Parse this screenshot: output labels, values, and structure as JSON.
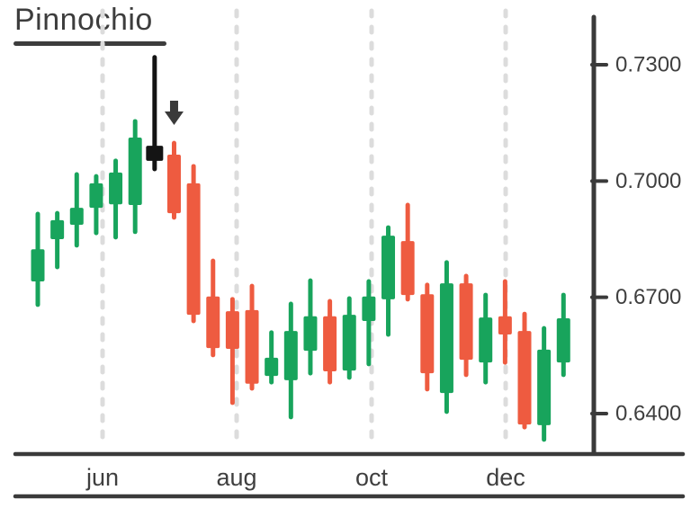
{
  "title": {
    "text": "Pinnochio"
  },
  "colors": {
    "bullish": "#18a45c",
    "bearish": "#ee5b40",
    "pinocchio_bar": "#141414",
    "annotation_arrow": "#3a3a3a",
    "axis": "#3a3a3a",
    "text": "#3f3f3f",
    "gridline": "#dcdcdc"
  },
  "chart_data": {
    "type": "candlestick",
    "title": "Pinnochio",
    "legend_position": "none",
    "grid": "vertical-dashed",
    "y_axis": {
      "side": "right",
      "ticks": [
        {
          "label": "0.7300",
          "value": 0.73
        },
        {
          "label": "0.7000",
          "value": 0.7
        },
        {
          "label": "0.6700",
          "value": 0.67
        },
        {
          "label": "0.6400",
          "value": 0.64
        }
      ],
      "range": [
        0.628,
        0.742
      ]
    },
    "x_axis": {
      "ticks": [
        "jun",
        "aug",
        "oct",
        "dec"
      ]
    },
    "candles": [
      {
        "color": "green",
        "open": 0.6741,
        "high": 0.6915,
        "low": 0.6681,
        "close": 0.6824
      },
      {
        "color": "green",
        "open": 0.685,
        "high": 0.6917,
        "low": 0.6778,
        "close": 0.6899
      },
      {
        "color": "green",
        "open": 0.6887,
        "high": 0.7017,
        "low": 0.6834,
        "close": 0.6931
      },
      {
        "color": "green",
        "open": 0.6931,
        "high": 0.7012,
        "low": 0.6866,
        "close": 0.6994
      },
      {
        "color": "green",
        "open": 0.694,
        "high": 0.7052,
        "low": 0.6855,
        "close": 0.7022
      },
      {
        "color": "green",
        "open": 0.6938,
        "high": 0.7154,
        "low": 0.6869,
        "close": 0.7112
      },
      {
        "color": "black",
        "open": 0.7091,
        "high": 0.7319,
        "low": 0.7031,
        "close": 0.7052
      },
      {
        "color": "red",
        "open": 0.7068,
        "high": 0.7098,
        "low": 0.6906,
        "close": 0.6917
      },
      {
        "color": "red",
        "open": 0.6994,
        "high": 0.7038,
        "low": 0.6639,
        "close": 0.6655
      },
      {
        "color": "red",
        "open": 0.6702,
        "high": 0.6794,
        "low": 0.6551,
        "close": 0.6569
      },
      {
        "color": "red",
        "open": 0.6664,
        "high": 0.6695,
        "low": 0.6428,
        "close": 0.6567
      },
      {
        "color": "red",
        "open": 0.6667,
        "high": 0.6729,
        "low": 0.6465,
        "close": 0.6477
      },
      {
        "color": "green",
        "open": 0.6497,
        "high": 0.6609,
        "low": 0.6481,
        "close": 0.6544
      },
      {
        "color": "green",
        "open": 0.6486,
        "high": 0.6683,
        "low": 0.6391,
        "close": 0.6613
      },
      {
        "color": "green",
        "open": 0.6562,
        "high": 0.6743,
        "low": 0.6504,
        "close": 0.6651
      },
      {
        "color": "red",
        "open": 0.6651,
        "high": 0.669,
        "low": 0.6481,
        "close": 0.6509
      },
      {
        "color": "green",
        "open": 0.6511,
        "high": 0.6697,
        "low": 0.6493,
        "close": 0.6655
      },
      {
        "color": "green",
        "open": 0.6639,
        "high": 0.6741,
        "low": 0.6528,
        "close": 0.6702
      },
      {
        "color": "green",
        "open": 0.6695,
        "high": 0.688,
        "low": 0.6604,
        "close": 0.6859
      },
      {
        "color": "red",
        "open": 0.6845,
        "high": 0.6938,
        "low": 0.6695,
        "close": 0.6706
      },
      {
        "color": "red",
        "open": 0.6708,
        "high": 0.6732,
        "low": 0.6463,
        "close": 0.6504
      },
      {
        "color": "green",
        "open": 0.6453,
        "high": 0.679,
        "low": 0.6405,
        "close": 0.6736
      },
      {
        "color": "red",
        "open": 0.6736,
        "high": 0.6755,
        "low": 0.65,
        "close": 0.6539
      },
      {
        "color": "green",
        "open": 0.6532,
        "high": 0.6706,
        "low": 0.6481,
        "close": 0.6648
      },
      {
        "color": "red",
        "open": 0.6651,
        "high": 0.6741,
        "low": 0.6532,
        "close": 0.6604
      },
      {
        "color": "red",
        "open": 0.6613,
        "high": 0.6657,
        "low": 0.6365,
        "close": 0.6372
      },
      {
        "color": "green",
        "open": 0.637,
        "high": 0.662,
        "low": 0.6333,
        "close": 0.6565
      },
      {
        "color": "green",
        "open": 0.6532,
        "high": 0.6706,
        "low": 0.65,
        "close": 0.6646
      }
    ],
    "annotations": [
      {
        "type": "down-arrow",
        "candle_index": 7
      },
      {
        "type": "highlighted-bar",
        "candle_index": 6,
        "note": "long upper wick (pinocchio bar)"
      }
    ]
  }
}
